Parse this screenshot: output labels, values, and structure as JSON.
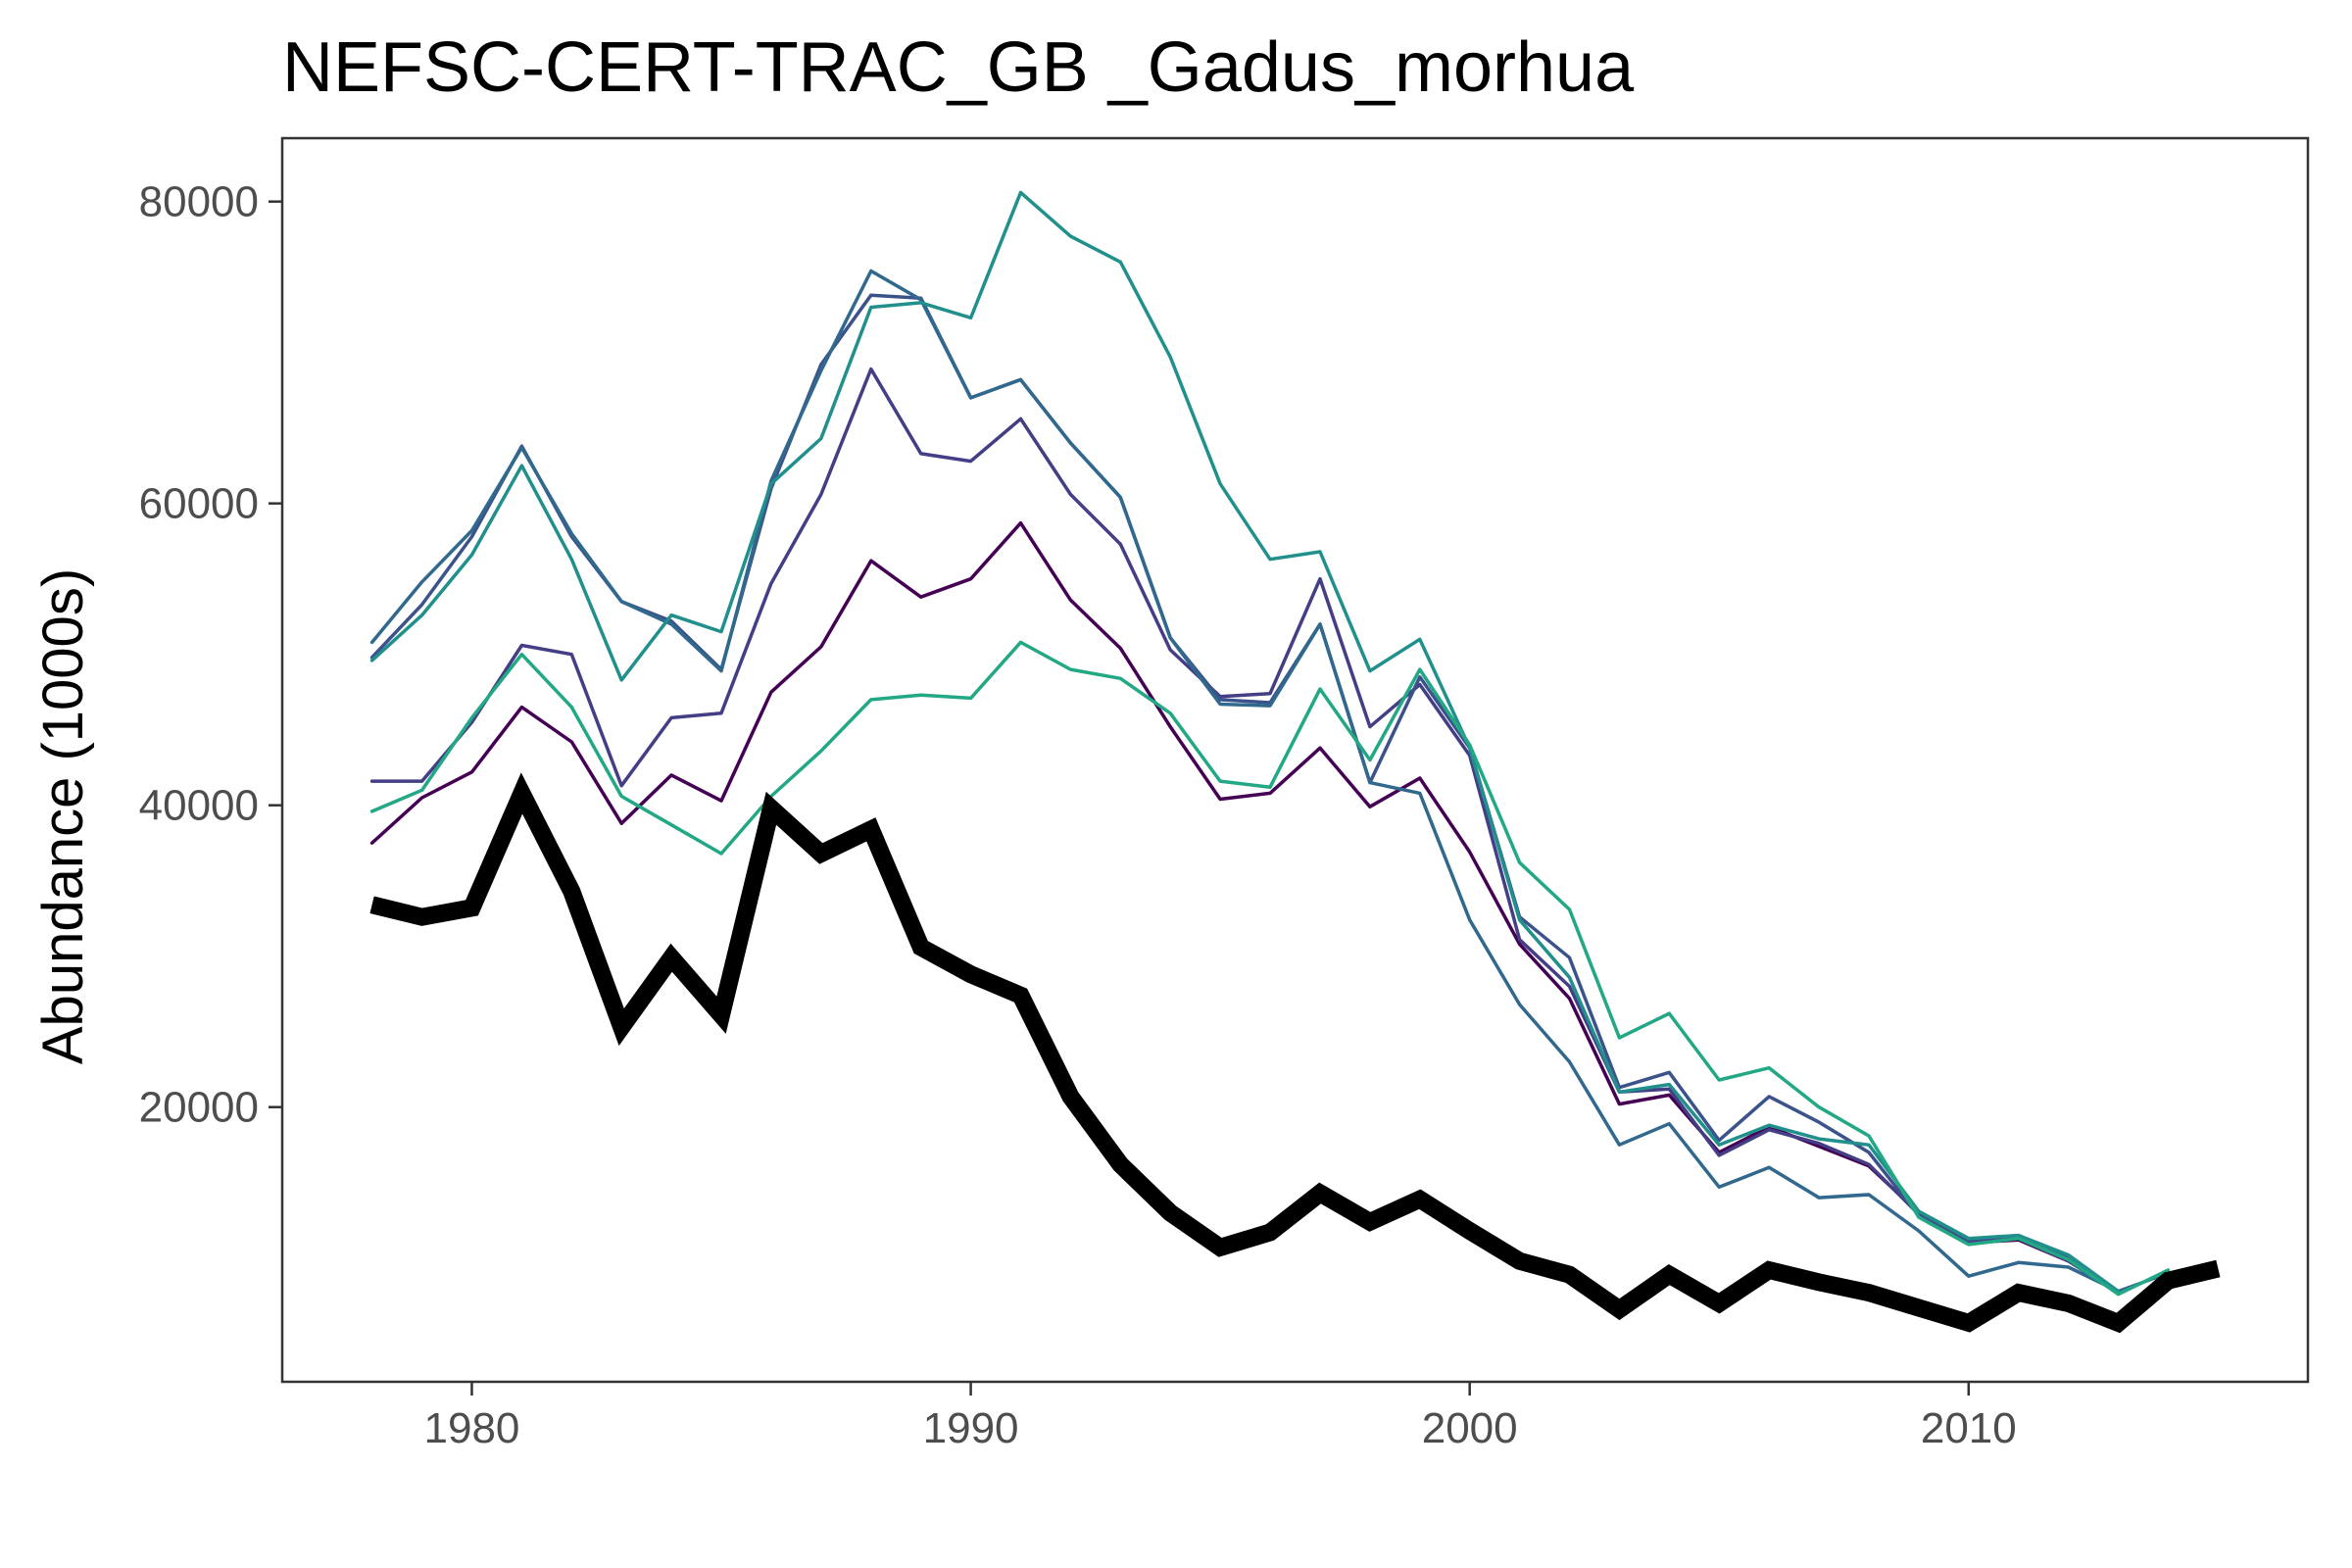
{
  "chart_data": {
    "type": "line",
    "title": "NEFSC-CERT-TRAC_GB _Gadus_morhua",
    "xlabel": "",
    "ylabel": "Abundance (1000s)",
    "xlim": [
      1976.2,
      2016.8
    ],
    "ylim": [
      1800,
      84200
    ],
    "xticks": [
      1980,
      1990,
      2000,
      2010
    ],
    "yticks": [
      20000,
      40000,
      60000,
      80000
    ],
    "grid": false,
    "legend": "none",
    "x": [
      1978,
      1979,
      1980,
      1981,
      1982,
      1983,
      1984,
      1985,
      1986,
      1987,
      1988,
      1989,
      1990,
      1991,
      1992,
      1993,
      1994,
      1995,
      1996,
      1997,
      1998,
      1999,
      2000,
      2001,
      2002,
      2003,
      2004,
      2005,
      2006,
      2007,
      2008,
      2009,
      2010,
      2011,
      2012,
      2013,
      2014,
      2015
    ],
    "series": [
      {
        "color": "#440154",
        "role": "thin",
        "values": [
          37500,
          40500,
          42200,
          46500,
          44200,
          38800,
          42000,
          40300,
          47500,
          50500,
          56200,
          53800,
          55000,
          58700,
          53600,
          50400,
          45200,
          40400,
          40800,
          43800,
          39900,
          41800,
          36900,
          30800,
          27200,
          20200,
          20800,
          17000,
          18700,
          17400,
          16100,
          13000,
          11000,
          11200,
          9800,
          7800,
          null,
          null
        ]
      },
      {
        "color": "#433e85",
        "role": "thin",
        "values": [
          41600,
          41600,
          45500,
          50600,
          50000,
          41300,
          45800,
          46100,
          54700,
          60600,
          68900,
          63300,
          62800,
          65600,
          60600,
          57300,
          50300,
          47200,
          47400,
          55000,
          45200,
          48000,
          43300,
          31100,
          28000,
          21000,
          21200,
          16800,
          18500,
          17600,
          16200,
          12900,
          11100,
          11300,
          9800,
          7700,
          null,
          null
        ]
      },
      {
        "color": "#3b528b",
        "role": "thin",
        "values": [
          49800,
          53300,
          57800,
          63800,
          57800,
          53500,
          52200,
          49000,
          61000,
          69200,
          73800,
          73600,
          67000,
          68200,
          64000,
          60400,
          51100,
          47000,
          46800,
          52000,
          41500,
          48500,
          43800,
          32600,
          29900,
          21300,
          22300,
          17800,
          20700,
          19000,
          17000,
          12800,
          11200,
          11500,
          10000,
          7700,
          null,
          null
        ]
      },
      {
        "color": "#31688e",
        "role": "thin",
        "values": [
          50800,
          54800,
          58200,
          63700,
          58000,
          53500,
          52000,
          48900,
          61500,
          68800,
          75400,
          73500,
          67000,
          68200,
          64000,
          60400,
          51100,
          46700,
          46600,
          52000,
          41500,
          40800,
          32400,
          26800,
          23000,
          17500,
          18900,
          14700,
          16000,
          14000,
          14200,
          11800,
          8800,
          9700,
          9400,
          7800,
          9000,
          null
        ]
      },
      {
        "color": "#21908c",
        "role": "thin",
        "values": [
          49600,
          52600,
          56600,
          62500,
          56300,
          48300,
          52600,
          51500,
          61300,
          64300,
          73000,
          73300,
          72300,
          80600,
          77700,
          76000,
          69700,
          61300,
          56300,
          56800,
          48900,
          51000,
          43800,
          32400,
          28600,
          21000,
          21500,
          17500,
          18800,
          17900,
          17500,
          13100,
          11300,
          11500,
          10200,
          7800,
          null,
          null
        ]
      },
      {
        "color": "#22a884",
        "role": "thin",
        "values": [
          39600,
          41000,
          45800,
          50000,
          46500,
          40600,
          38700,
          36800,
          40600,
          43600,
          47000,
          47300,
          47100,
          50800,
          49000,
          48400,
          46100,
          41600,
          41200,
          47700,
          43000,
          49000,
          44000,
          36200,
          33100,
          24600,
          26200,
          21800,
          22600,
          20000,
          18100,
          12700,
          10900,
          11300,
          9900,
          7600,
          9200,
          null
        ]
      },
      {
        "color": "#000000",
        "role": "thick",
        "values": [
          33400,
          32600,
          33200,
          40800,
          34300,
          25300,
          29900,
          26100,
          39800,
          36800,
          38400,
          30600,
          28800,
          27400,
          20700,
          16200,
          13000,
          10700,
          11700,
          14300,
          12400,
          13900,
          11800,
          9800,
          8900,
          6600,
          8900,
          7000,
          9200,
          8400,
          7700,
          6700,
          5700,
          7700,
          7000,
          5700,
          8500,
          9300
        ]
      }
    ]
  }
}
